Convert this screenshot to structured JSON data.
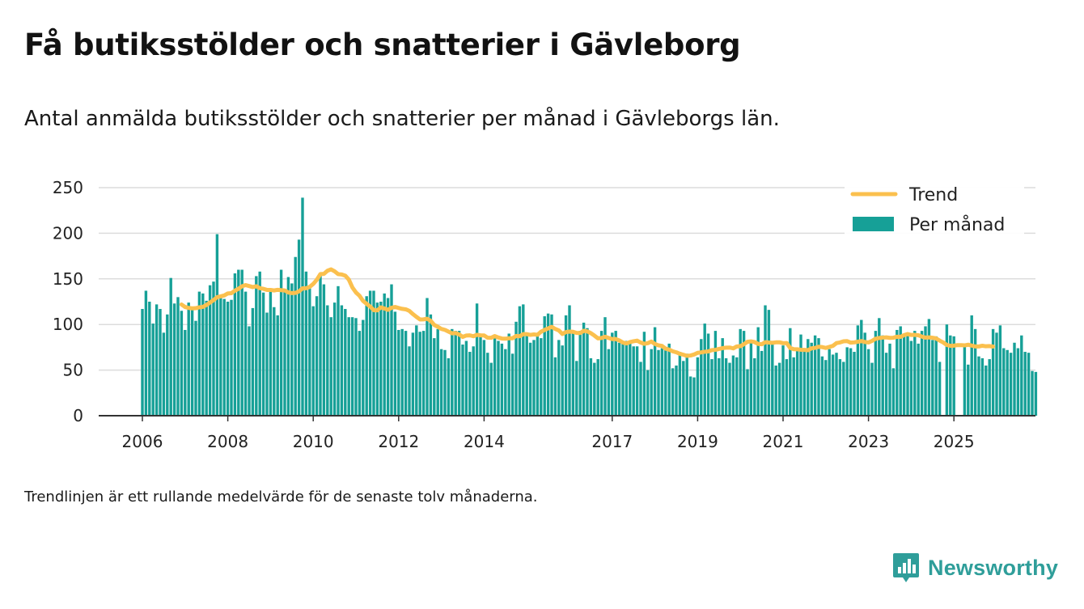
{
  "title": "Få butiksstölder och snatterier i Gävleborg",
  "subtitle": "Antal anmälda butiksstölder och snatterier per månad i Gävleborgs län.",
  "note": "Trendlinjen är ett rullande medelvärde för de senaste tolv månaderna.",
  "brand": {
    "name": "Newsworthy",
    "icon": "newsworthy-logo-icon",
    "color": "#2f9e9a"
  },
  "colors": {
    "bar": "#16a097",
    "trend": "#fbc04e",
    "grid": "#dcdcdc",
    "axis": "#333333"
  },
  "chart_data": {
    "type": "bar",
    "title": "",
    "xlabel": "",
    "ylabel": "",
    "ylim": [
      0,
      250
    ],
    "yticks": [
      0,
      50,
      100,
      150,
      200,
      250
    ],
    "xticks": [
      {
        "label": "2006",
        "date": "2006-01"
      },
      {
        "label": "2008",
        "date": "2008-01"
      },
      {
        "label": "2010",
        "date": "2010-01"
      },
      {
        "label": "2012",
        "date": "2012-01"
      },
      {
        "label": "2014",
        "date": "2014-01"
      },
      {
        "label": "2017",
        "date": "2017-01"
      },
      {
        "label": "2019",
        "date": "2019-01"
      },
      {
        "label": "2021",
        "date": "2021-01"
      },
      {
        "label": "2023",
        "date": "2023-01"
      },
      {
        "label": "2025",
        "date": "2025-01"
      }
    ],
    "grid": true,
    "legend_position": "top-right",
    "start_month": "2006-01",
    "series": [
      {
        "name": "Per månad",
        "type": "bar",
        "values": [
          117,
          137,
          125,
          101,
          122,
          117,
          91,
          111,
          151,
          123,
          130,
          115,
          94,
          124,
          119,
          104,
          136,
          134,
          126,
          143,
          147,
          199,
          130,
          128,
          125,
          127,
          156,
          160,
          160,
          136,
          98,
          118,
          153,
          158,
          135,
          113,
          138,
          119,
          110,
          160,
          139,
          152,
          145,
          174,
          193,
          239,
          158,
          140,
          120,
          131,
          155,
          144,
          121,
          108,
          124,
          142,
          121,
          117,
          108,
          108,
          107,
          93,
          105,
          131,
          137,
          137,
          124,
          125,
          134,
          129,
          144,
          114,
          94,
          95,
          93,
          76,
          91,
          99,
          92,
          93,
          129,
          111,
          85,
          95,
          73,
          72,
          63,
          95,
          93,
          93,
          78,
          82,
          70,
          76,
          123,
          90,
          83,
          69,
          58,
          89,
          82,
          79,
          73,
          90,
          68,
          103,
          120,
          122,
          90,
          80,
          83,
          88,
          85,
          109,
          112,
          111,
          64,
          83,
          77,
          110,
          121,
          93,
          60,
          93,
          102,
          96,
          63,
          58,
          62,
          93,
          108,
          73,
          91,
          93,
          80,
          81,
          82,
          79,
          76,
          76,
          59,
          92,
          50,
          73,
          97,
          72,
          74,
          74,
          79,
          52,
          55,
          70,
          60,
          68,
          43,
          42,
          64,
          84,
          101,
          90,
          62,
          93,
          63,
          85,
          63,
          58,
          66,
          64,
          95,
          93,
          51,
          82,
          63,
          97,
          71,
          121,
          116,
          81,
          55,
          58,
          77,
          62,
          96,
          64,
          71,
          89,
          72,
          84,
          80,
          88,
          85,
          65,
          61,
          73,
          67,
          69,
          62,
          59,
          75,
          74,
          70,
          99,
          105,
          91,
          73,
          58,
          93,
          107,
          88,
          69,
          79,
          52,
          94,
          98,
          90,
          91,
          82,
          93,
          79,
          93,
          98,
          106,
          83,
          87,
          59,
          0,
          100,
          88,
          87,
          0,
          0,
          77,
          56,
          110,
          95,
          65,
          63,
          55,
          62,
          95,
          91,
          99,
          74,
          72,
          69,
          80,
          74,
          88,
          70,
          69,
          49,
          48
        ]
      },
      {
        "name": "Trend",
        "type": "line",
        "values": [
          null,
          null,
          null,
          null,
          null,
          null,
          null,
          null,
          null,
          null,
          null,
          121.9,
          119.2,
          118.1,
          117.7,
          117.9,
          118.8,
          119.3,
          121.4,
          124.1,
          126.7,
          129.9,
          130.8,
          131.8,
          134.0,
          134.3,
          137.1,
          139.1,
          141.9,
          143.2,
          142.1,
          141.0,
          141.9,
          139.8,
          139.1,
          137.9,
          137.9,
          137.3,
          138.0,
          137.6,
          137.3,
          135.1,
          134.4,
          134.6,
          136.3,
          139.6,
          139.7,
          141.2,
          144.4,
          149.0,
          155.2,
          155.5,
          158.9,
          160.4,
          158.3,
          155.2,
          154.8,
          153.5,
          149.2,
          140.6,
          135.1,
          131.5,
          125.8,
          122.6,
          119.7,
          115.7,
          115.5,
          118.8,
          117.5,
          116.0,
          118.3,
          119.2,
          118.1,
          117.1,
          116.6,
          114.9,
          111.4,
          108.3,
          105.5,
          105.6,
          106.3,
          104.0,
          99.5,
          97.5,
          95.1,
          94.1,
          92.2,
          90.3,
          90.6,
          89.1,
          86.4,
          87.9,
          88.1,
          87.1,
          88.7,
          88.1,
          88.0,
          85.5,
          85.4,
          87.3,
          85.7,
          84.6,
          84.4,
          84.9,
          84.9,
          87.4,
          87.1,
          89.4,
          89.4,
          88.6,
          89.1,
          88.7,
          92.1,
          94.0,
          95.7,
          97.4,
          95.1,
          93.5,
          89.6,
          91.7,
          92.2,
          92.0,
          90.8,
          90.6,
          93.1,
          92.4,
          90.5,
          87.8,
          84.8,
          85.2,
          86.5,
          85.2,
          84.0,
          84.1,
          82.5,
          80.2,
          79.2,
          80.7,
          81.6,
          82.3,
          80.2,
          78.8,
          79.5,
          81.3,
          78.6,
          77.1,
          76.5,
          73.5,
          72.4,
          70.6,
          69.5,
          67.9,
          66.8,
          65.6,
          66.0,
          67.1,
          68.9,
          69.4,
          70.1,
          70.5,
          71.9,
          72.2,
          73.2,
          74.1,
          74.6,
          74.7,
          73.8,
          75.9,
          76.2,
          78.4,
          81.0,
          81.5,
          80.7,
          78.7,
          78.3,
          80.6,
          80.2,
          79.9,
          80.4,
          80.5,
          79.5,
          79.7,
          74.2,
          72.9,
          72.8,
          72.3,
          72.1,
          71.8,
          73.9,
          74.3,
          75.6,
          75.2,
          74.3,
          75.4,
          76.6,
          79.6,
          80.3,
          81.6,
          81.8,
          80.1,
          80.4,
          81.1,
          81.8,
          80.8,
          80.3,
          82.0,
          84.4,
          85.2,
          85.6,
          85.9,
          85.3,
          85.5,
          86.6,
          86.4,
          88.3,
          89.5,
          88.5,
          88.6,
          88.2,
          86.7,
          85.6,
          85.9,
          85.5,
          84.7,
          82.3,
          80.3,
          77.5,
          76.6,
          76.8,
          77.4,
          77.4,
          77.1,
          77.8,
          76.9,
          75.9,
          75.9,
          76.7,
          76.1,
          76.3,
          75.8
        ]
      }
    ]
  }
}
